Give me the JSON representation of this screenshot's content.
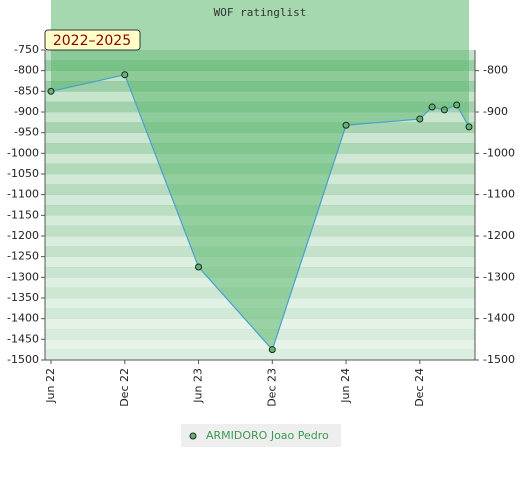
{
  "chart_data": {
    "type": "line",
    "title": "WOF ratinglist",
    "annotation": "2022–2025",
    "x": [
      "2022-06",
      "2022-12",
      "2023-06",
      "2023-12",
      "2024-06",
      "2024-12",
      "2025-01",
      "2025-02",
      "2025-03",
      "2025-04"
    ],
    "series": [
      {
        "name": "ARMIDORO Joao Pedro",
        "color": "#4a9fd0",
        "fill": "#5cb870",
        "values": [
          -850,
          -810,
          -1275,
          -1475,
          -932,
          -917,
          -888,
          -895,
          -883,
          -936
        ]
      }
    ],
    "xlim": [
      "2022-06",
      "2025-04"
    ],
    "xticks": [
      {
        "value": "2022-06",
        "label": "Jun 22"
      },
      {
        "value": "2022-12",
        "label": "Dec 22"
      },
      {
        "value": "2023-06",
        "label": "Jun 23"
      },
      {
        "value": "2023-12",
        "label": "Dec 23"
      },
      {
        "value": "2024-06",
        "label": "Jun 24"
      },
      {
        "value": "2024-12",
        "label": "Dec 24"
      }
    ],
    "ylim": [
      -1500,
      -750
    ],
    "yticks": [
      -750,
      -800,
      -850,
      -900,
      -950,
      -1000,
      -1050,
      -1100,
      -1150,
      -1200,
      -1250,
      -1300,
      -1350,
      -1400,
      -1450,
      -1500
    ],
    "y2lim": [
      -1500,
      -750
    ],
    "y2ticks": [
      -800,
      -900,
      -1000,
      -1100,
      -1200,
      -1300,
      -1400,
      -1500
    ]
  }
}
